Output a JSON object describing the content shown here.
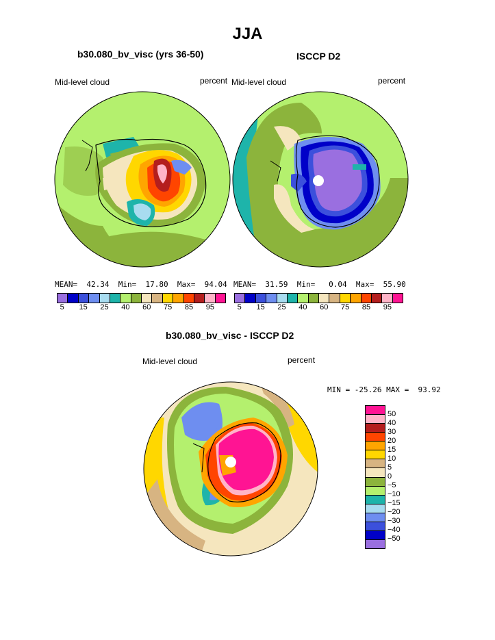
{
  "title": "JJA",
  "panels": [
    {
      "title": "b30.080_bv_visc (yrs 36-50)",
      "variable": "Mid-level cloud",
      "units": "percent",
      "stats": {
        "mean_label": "MEAN=",
        "mean": "42.34",
        "min_label": "Min=",
        "min": "17.80",
        "max_label": "Max=",
        "max": "94.04"
      }
    },
    {
      "title": "ISCCP D2",
      "variable": "Mid-level cloud",
      "units": "percent",
      "stats": {
        "mean_label": "MEAN=",
        "mean": "31.59",
        "min_label": "Min=",
        "min": "0.04",
        "max_label": "Max=",
        "max": "55.90"
      }
    },
    {
      "title": "b30.080_bv_visc - ISCCP D2",
      "variable": "Mid-level cloud",
      "units": "percent",
      "stats_text": "MIN = -25.26 MAX =  93.92"
    }
  ],
  "colorbar_top": {
    "labels": [
      "5",
      "15",
      "25",
      "40",
      "60",
      "75",
      "85",
      "95"
    ],
    "colors": [
      "#9a6fe0",
      "#0000c8",
      "#3c50dc",
      "#6e8ef0",
      "#a8dcf0",
      "#1eb4aa",
      "#b4f06e",
      "#8cb43c",
      "#f5e6be",
      "#d7b482",
      "#ffd700",
      "#ffa500",
      "#ff4500",
      "#b41e1e",
      "#ffb4c8",
      "#ff1493"
    ]
  },
  "colorbar_diff": {
    "labels": [
      "50",
      "40",
      "30",
      "20",
      "15",
      "10",
      "5",
      "0",
      "−5",
      "−10",
      "−15",
      "−20",
      "−30",
      "−40",
      "−50"
    ],
    "colors": [
      "#ff1493",
      "#ffb4c8",
      "#b41e1e",
      "#ff4500",
      "#ffa500",
      "#ffd700",
      "#d7b482",
      "#f5e6be",
      "#8cb43c",
      "#b4f06e",
      "#1eb4aa",
      "#a8dcf0",
      "#6e8ef0",
      "#3c50dc",
      "#0000c8",
      "#9a6fe0"
    ]
  }
}
